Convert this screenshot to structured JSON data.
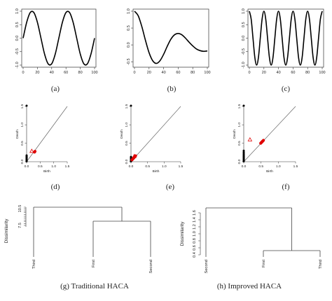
{
  "chart_data": [
    {
      "panel": "(a)",
      "type": "line",
      "x": [
        0,
        5,
        10,
        15,
        20,
        25,
        30,
        35,
        40,
        45,
        50,
        55,
        60,
        65,
        70,
        75,
        80,
        85,
        90,
        95,
        100
      ],
      "y": [
        0.0,
        0.588,
        0.951,
        0.951,
        0.588,
        0.0,
        -0.588,
        -0.951,
        -0.951,
        -0.588,
        0.0,
        0.588,
        0.951,
        0.951,
        0.588,
        0.0,
        -0.588,
        -0.951,
        -0.951,
        -0.588,
        0.0
      ],
      "xlim": [
        0,
        100
      ],
      "ylim": [
        -1,
        1
      ],
      "xticks": [
        "0",
        "20",
        "40",
        "60",
        "80",
        "100"
      ],
      "yticks": [
        "-1.0",
        "-0.5",
        "0.0",
        "0.5",
        "1.0"
      ]
    },
    {
      "panel": "(b)",
      "type": "line",
      "x": [
        0,
        5,
        10,
        15,
        20,
        25,
        30,
        35,
        40,
        45,
        50,
        55,
        60,
        65,
        70,
        75,
        80,
        85,
        90,
        95,
        100
      ],
      "y": [
        1.0,
        0.87,
        0.55,
        0.14,
        -0.23,
        -0.47,
        -0.55,
        -0.47,
        -0.28,
        -0.04,
        0.17,
        0.3,
        0.34,
        0.3,
        0.2,
        0.08,
        -0.03,
        -0.12,
        -0.17,
        -0.19,
        -0.18
      ],
      "xlim": [
        0,
        100
      ],
      "ylim": [
        -0.6,
        1
      ],
      "xticks": [
        "0",
        "20",
        "40",
        "60",
        "80",
        "100"
      ],
      "yticks": [
        "-0.5",
        "0.0",
        "0.5",
        "1.0"
      ]
    },
    {
      "panel": "(c)",
      "type": "line",
      "x": [
        0,
        2.5,
        5,
        7.5,
        10,
        12.5,
        15,
        17.5,
        20,
        22.5,
        25,
        27.5,
        30,
        32.5,
        35,
        37.5,
        40,
        42.5,
        45,
        47.5,
        50,
        52.5,
        55,
        57.5,
        60,
        62.5,
        65,
        67.5,
        70,
        72.5,
        75,
        77.5,
        80,
        82.5,
        85,
        87.5,
        90,
        92.5,
        95,
        97.5,
        100
      ],
      "y": [
        1.0,
        0.707,
        0.0,
        -0.707,
        -1.0,
        -0.707,
        0.0,
        0.707,
        1.0,
        0.707,
        0.0,
        -0.707,
        -1.0,
        -0.707,
        0.0,
        0.707,
        1.0,
        0.707,
        0.0,
        -0.707,
        -1.0,
        -0.707,
        0.0,
        0.707,
        1.0,
        0.707,
        0.0,
        -0.707,
        -1.0,
        -0.707,
        0.0,
        0.707,
        1.0,
        0.707,
        0.0,
        -0.707,
        -1.0,
        -0.707,
        0.0,
        0.707,
        1.0
      ],
      "xlim": [
        0,
        100
      ],
      "ylim": [
        -1,
        1
      ],
      "xticks": [
        "0",
        "20",
        "40",
        "60",
        "80",
        "100"
      ],
      "yticks": [
        "-1.0",
        "-0.5",
        "0.0",
        "0.5",
        "1.0"
      ]
    },
    {
      "panel": "(d)",
      "type": "scatter",
      "xlabel": "Birth",
      "ylabel": "Death",
      "xlim": [
        0,
        1.5
      ],
      "ylim": [
        0,
        1.5
      ],
      "xticks": [
        "0.0",
        "0.5",
        "1.0",
        "1.5"
      ],
      "yticks": [
        "0.0",
        "0.5",
        "1.0",
        "1.5"
      ],
      "dim0_points": [
        [
          0,
          0.01
        ],
        [
          0,
          0.03
        ],
        [
          0,
          0.05
        ],
        [
          0,
          0.07
        ],
        [
          0,
          0.09
        ],
        [
          0,
          0.11
        ],
        [
          0,
          0.13
        ],
        [
          0,
          0.15
        ],
        [
          0,
          0.17
        ]
      ],
      "infinite_point": [
        0,
        1.52
      ],
      "dim1_points": [
        [
          0.29,
          0.26
        ],
        [
          0.31,
          0.28
        ],
        [
          0.3,
          0.27
        ]
      ],
      "triangle_points": [
        [
          0.19,
          0.29
        ]
      ]
    },
    {
      "panel": "(e)",
      "type": "scatter",
      "xlabel": "Birth",
      "ylabel": "Death",
      "xlim": [
        0,
        1.5
      ],
      "ylim": [
        0,
        1.5
      ],
      "xticks": [
        "0.0",
        "0.5",
        "1.0",
        "1.5"
      ],
      "yticks": [
        "0.0",
        "0.5",
        "1.0",
        "1.5"
      ],
      "dim0_points": [
        [
          0,
          0.01
        ],
        [
          0,
          0.03
        ],
        [
          0,
          0.05
        ],
        [
          0,
          0.07
        ],
        [
          0,
          0.09
        ],
        [
          0,
          0.11
        ],
        [
          0,
          0.13
        ]
      ],
      "infinite_point": [
        0,
        1.52
      ],
      "dim1_points": [
        [
          0.03,
          0.05
        ],
        [
          0.05,
          0.07
        ],
        [
          0.07,
          0.09
        ],
        [
          0.09,
          0.11
        ],
        [
          0.11,
          0.13
        ],
        [
          0.12,
          0.14
        ],
        [
          0.14,
          0.16
        ],
        [
          0.08,
          0.1
        ]
      ],
      "triangle_points": [
        [
          0.1,
          0.15
        ]
      ]
    },
    {
      "panel": "(f)",
      "type": "scatter",
      "xlabel": "Birth",
      "ylabel": "Death",
      "xlim": [
        0,
        1.5
      ],
      "ylim": [
        0,
        1.5
      ],
      "xticks": [
        "0.0",
        "0.5",
        "1.0",
        "1.5"
      ],
      "yticks": [
        "0.0",
        "0.5",
        "1.0",
        "1.5"
      ],
      "dim0_points": [
        [
          0,
          0.01
        ],
        [
          0,
          0.03
        ],
        [
          0,
          0.05
        ],
        [
          0,
          0.07
        ],
        [
          0,
          0.09
        ],
        [
          0,
          0.11
        ],
        [
          0,
          0.13
        ],
        [
          0,
          0.15
        ],
        [
          0,
          0.17
        ],
        [
          0,
          0.2
        ],
        [
          0,
          0.23
        ],
        [
          0,
          0.26
        ],
        [
          0,
          0.3
        ]
      ],
      "infinite_point": [
        0,
        1.52
      ],
      "dim1_points": [
        [
          0.49,
          0.5
        ],
        [
          0.51,
          0.52
        ],
        [
          0.53,
          0.54
        ],
        [
          0.55,
          0.56
        ],
        [
          0.57,
          0.58
        ],
        [
          0.52,
          0.53
        ],
        [
          0.54,
          0.55
        ]
      ],
      "triangle_points": [
        [
          0.18,
          0.6
        ]
      ]
    },
    {
      "panel": "(g) Traditional HACA",
      "type": "dendrogram",
      "ylabel": "Dissimilarity",
      "yticks": [
        "7.5",
        "10.5"
      ],
      "leaves": [
        "Third",
        "First",
        "Second"
      ],
      "merges": [
        {
          "left": "First",
          "right": "Second",
          "height": 8.7
        },
        {
          "left": "Third",
          "right": "First+Second",
          "height": 10.5
        }
      ]
    },
    {
      "panel": "(h) Improved HACA",
      "type": "dendrogram",
      "ylabel": "Dissimilarity",
      "yticks": [
        "0.4",
        "0.6",
        "0.8",
        "1.0",
        "1.2",
        "1.4",
        "1.6"
      ],
      "leaves": [
        "Second",
        "First",
        "Third"
      ],
      "merges": [
        {
          "left": "First",
          "right": "Third",
          "height": 0.52
        },
        {
          "left": "Second",
          "right": "First+Third",
          "height": 1.68
        }
      ]
    }
  ],
  "captions": {
    "a": "(a)",
    "b": "(b)",
    "c": "(c)",
    "d": "(d)",
    "e": "(e)",
    "f": "(f)",
    "g": "(g) Traditional HACA",
    "h": "(h) Improved HACA"
  }
}
